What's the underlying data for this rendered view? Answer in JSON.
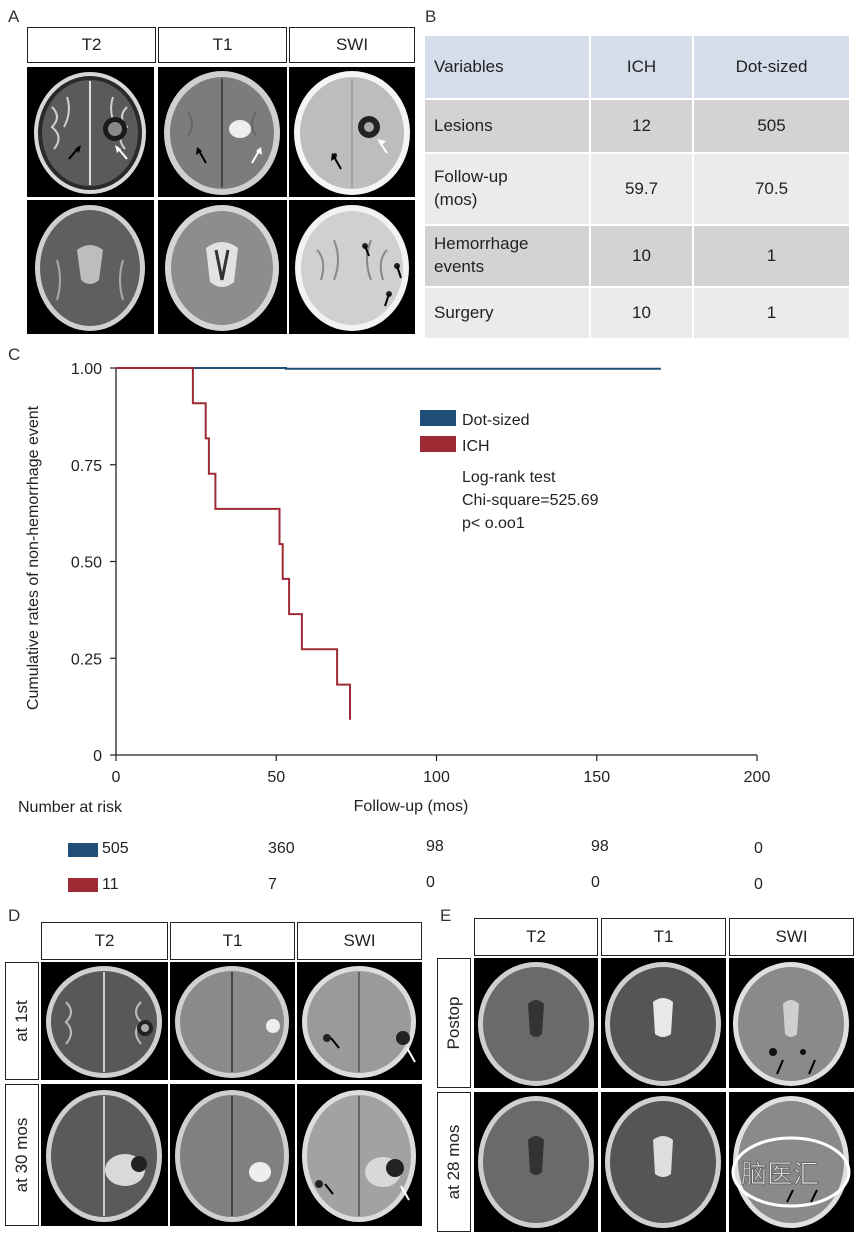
{
  "panels": {
    "a": "A",
    "b": "B",
    "c": "C",
    "d": "D",
    "e": "E"
  },
  "seq_headers": {
    "t2": "T2",
    "t1": "T1",
    "swi": "SWI"
  },
  "table": {
    "header": [
      "Variables",
      "ICH",
      "Dot-sized"
    ],
    "rows": [
      {
        "label": "Lesions",
        "ich": "12",
        "dot": "505"
      },
      {
        "label": "Follow-up\n(mos)",
        "ich": "59.7",
        "dot": "70.5"
      },
      {
        "label": "Hemorrhage\nevents",
        "ich": "10",
        "dot": "1"
      },
      {
        "label": "Surgery",
        "ich": "10",
        "dot": "1"
      }
    ]
  },
  "chart_data": {
    "type": "line",
    "ylabel": "Cumulative rates of non-hemorrhage event",
    "xlabel": "Follow-up (mos)",
    "xlim": [
      0,
      200
    ],
    "ylim": [
      0,
      1
    ],
    "x_ticks": [
      "0",
      "50",
      "100",
      "150",
      "200"
    ],
    "y_ticks": [
      "0",
      "0.25",
      "0.50",
      "0.75",
      "1.00"
    ],
    "series": [
      {
        "name": "Dot-sized",
        "color": "#1f4e79",
        "x": [
          0,
          53,
          53,
          170
        ],
        "y": [
          1.0,
          1.0,
          0.998,
          0.998
        ]
      },
      {
        "name": "ICH",
        "color": "#9e2a33",
        "x": [
          0,
          24,
          24,
          28,
          28,
          29,
          29,
          31,
          31,
          51,
          51,
          52,
          52,
          54,
          54,
          58,
          58,
          69,
          69,
          73,
          73
        ],
        "y": [
          1.0,
          1.0,
          0.909,
          0.909,
          0.818,
          0.818,
          0.727,
          0.727,
          0.636,
          0.636,
          0.545,
          0.545,
          0.455,
          0.455,
          0.364,
          0.364,
          0.273,
          0.273,
          0.182,
          0.182,
          0.091
        ]
      }
    ],
    "annotation": [
      "Log-rank test",
      "Chi-square=525.69",
      "p< o.oo1"
    ],
    "legend_position": "top-right"
  },
  "risk": {
    "title": "Number at risk",
    "dot": {
      "color": "#1f4e79",
      "values": [
        "505",
        "360",
        "98",
        "98",
        "0"
      ]
    },
    "ich": {
      "color": "#9e2a33",
      "values": [
        "11",
        "7",
        "0",
        "0",
        "0"
      ]
    }
  },
  "d_rows": [
    "at 1st",
    "at 30 mos"
  ],
  "e_rows": [
    "Postop",
    "at 28 mos"
  ],
  "watermark": "脑医汇"
}
